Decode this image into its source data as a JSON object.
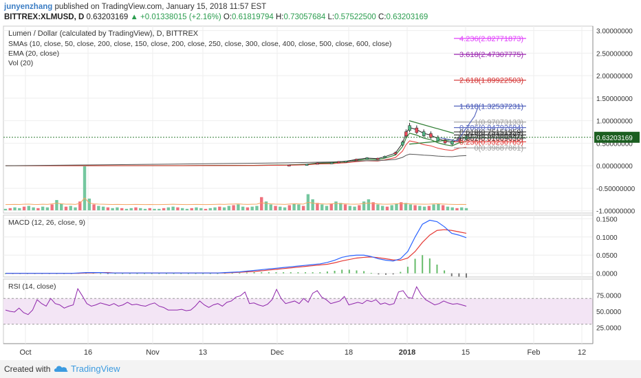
{
  "header": {
    "user": "junyenzhang",
    "published": "published on TradingView.com, January 15, 2018 11:57 EST",
    "symbol": "BITTREX:XLMUSD, D",
    "price": "0.63203169",
    "change": "▲ +0.01338015 (+2.16%)",
    "o_label": "O:",
    "o_value": "0.61819794",
    "h_label": "H:",
    "h_value": "0.73057684",
    "l_label": "L:",
    "l_value": "0.57522500",
    "c_label": "C:",
    "c_value": "0.63203169"
  },
  "footer": {
    "created_with": "Created with",
    "brand": "TradingView"
  },
  "colors": {
    "up": "#53b987",
    "down": "#eb4d5c",
    "macd": "#2962ff",
    "signal": "#e53935",
    "rsi": "#8e24aa",
    "rsi_band": "#f3e5f5"
  },
  "chart_data": [
    {
      "type": "candlestick",
      "title": "Lumen / Dollar (calculated by TradingView), D, BITTREX",
      "legend": [
        "SMAs (10, close, 50, close, 200, close, 150, close, 200, close, 250, close, 300, close, 400, close, 500, close, 600, close)",
        "EMA (20, close)",
        "Vol (20)"
      ],
      "ylim": [
        -1.05,
        3.1
      ],
      "yticks": [
        "3.00000000",
        "2.50000000",
        "2.00000000",
        "1.50000000",
        "1.00000000",
        "0.50000000",
        "0.00000000",
        "-0.50000000",
        "-1.00000000"
      ],
      "ytick_values": [
        3.0,
        2.5,
        2.0,
        1.5,
        1.0,
        0.5,
        0.0,
        -0.5,
        -1.0
      ],
      "last_price_label": "0.63203169",
      "last_price": 0.632,
      "price_path": [
        [
          0,
          0.002
        ],
        [
          20,
          0.002
        ],
        [
          40,
          0.003
        ],
        [
          50,
          0.003
        ],
        [
          60,
          0.008
        ],
        [
          70,
          0.01
        ],
        [
          80,
          0.02
        ],
        [
          85,
          0.035
        ],
        [
          88,
          0.06
        ],
        [
          92,
          0.07
        ],
        [
          94,
          0.09
        ],
        [
          96,
          0.1
        ],
        [
          99,
          0.14
        ],
        [
          102,
          0.17
        ],
        [
          105,
          0.16
        ],
        [
          107,
          0.2
        ],
        [
          110,
          0.28
        ],
        [
          112,
          0.5
        ],
        [
          113,
          0.72
        ],
        [
          114,
          0.85
        ],
        [
          116,
          0.8
        ],
        [
          118,
          0.72
        ],
        [
          120,
          0.68
        ],
        [
          122,
          0.6
        ],
        [
          124,
          0.55
        ],
        [
          126,
          0.52
        ],
        [
          128,
          0.6
        ],
        [
          130,
          0.632
        ]
      ],
      "fib_levels": [
        {
          "label": "4.236(2.82771873)",
          "value": 2.8277,
          "color": "#e040fb"
        },
        {
          "label": "3.618(2.47307775)",
          "value": 2.4731,
          "color": "#9c27b0"
        },
        {
          "label": "2.618(1.89922503)",
          "value": 1.8992,
          "color": "#d32f2f"
        },
        {
          "label": "1.618(1.32537231)",
          "value": 1.3254,
          "color": "#3f51b5"
        },
        {
          "label": "1(0.97073133)",
          "value": 0.9707,
          "color": "#9e9e9e"
        },
        {
          "label": "0.786(0.84792684)",
          "value": 0.8479,
          "color": "#5c6bc0"
        },
        {
          "label": "0.618(0.75151959)",
          "value": 0.7515,
          "color": "#333333"
        },
        {
          "label": "0.5(0.68380497)",
          "value": 0.6838,
          "color": "#333333"
        },
        {
          "label": "0.382(0.61609036)",
          "value": 0.6161,
          "color": "#333333"
        },
        {
          "label": "0.236(0.53230785)",
          "value": 0.5323,
          "color": "#e53935"
        },
        {
          "label": "0(0.39687861)",
          "value": 0.3969,
          "color": "#9e9e9e"
        }
      ],
      "volume": [
        2,
        3,
        4,
        3,
        5,
        6,
        4,
        3,
        5,
        4,
        8,
        14,
        9,
        5,
        6,
        4,
        12,
        60,
        16,
        8,
        6,
        5,
        4,
        3,
        4,
        3,
        2,
        3,
        4,
        3,
        2,
        3,
        2,
        2,
        3,
        4,
        5,
        4,
        3,
        2,
        3,
        4,
        3,
        2,
        3,
        4,
        5,
        4,
        6,
        7,
        8,
        5,
        4,
        5,
        6,
        18,
        12,
        8,
        6,
        5,
        4,
        7,
        9,
        8,
        6,
        22,
        15,
        10,
        8,
        6,
        9,
        12,
        10,
        8,
        6,
        5,
        7,
        12,
        15,
        11,
        8,
        6,
        5,
        7,
        9,
        11,
        10,
        8,
        7,
        6,
        5,
        6,
        8,
        9,
        7,
        5,
        4,
        3,
        4,
        3
      ]
    },
    {
      "type": "line",
      "title": "MACD (12, 26, close, 9)",
      "ylim": [
        -0.01,
        0.16
      ],
      "yticks": [
        "0.1500",
        "0.1000",
        "0.0500",
        "0.0000"
      ],
      "ytick_values": [
        0.15,
        0.1,
        0.05,
        0.0
      ],
      "series": [
        {
          "values": [
            0,
            0,
            0,
            0,
            0,
            0,
            0,
            0,
            0,
            0,
            0.001,
            0.002,
            0.002,
            0.002,
            0.001,
            0.001,
            0.001,
            0.001,
            0.001,
            0.001,
            0.001,
            0.001,
            0.001,
            0.001,
            0.001,
            0.001,
            0.001,
            0.001,
            0.001,
            0.001,
            0.002,
            0.003,
            0.004,
            0.006,
            0.008,
            0.01,
            0.012,
            0.014,
            0.016,
            0.018,
            0.02,
            0.022,
            0.024,
            0.026,
            0.03,
            0.036,
            0.044,
            0.048,
            0.05,
            0.05,
            0.046,
            0.04,
            0.036,
            0.034,
            0.04,
            0.06,
            0.1,
            0.135,
            0.146,
            0.142,
            0.128,
            0.11,
            0.105,
            0.098
          ]
        },
        {
          "values": [
            0,
            0,
            0,
            0,
            0,
            0,
            0,
            0,
            0,
            0,
            0,
            0.001,
            0.001,
            0.002,
            0.002,
            0.001,
            0.001,
            0.001,
            0.001,
            0.001,
            0.001,
            0.001,
            0.001,
            0.001,
            0.001,
            0.001,
            0.001,
            0.001,
            0.001,
            0.001,
            0.001,
            0.002,
            0.003,
            0.004,
            0.005,
            0.007,
            0.009,
            0.011,
            0.013,
            0.015,
            0.017,
            0.019,
            0.021,
            0.023,
            0.025,
            0.029,
            0.034,
            0.038,
            0.042,
            0.044,
            0.045,
            0.043,
            0.04,
            0.037,
            0.036,
            0.042,
            0.06,
            0.085,
            0.105,
            0.118,
            0.12,
            0.118,
            0.114,
            0.11
          ]
        }
      ],
      "histogram": [
        0,
        0,
        0,
        0,
        0,
        0,
        0,
        0,
        0,
        0,
        0.001,
        0.001,
        0.001,
        0,
        -0.001,
        0,
        0,
        0,
        0,
        0,
        0,
        0,
        0,
        0,
        0,
        0,
        0,
        0,
        0,
        0,
        0.001,
        0.001,
        0.001,
        0.002,
        0.003,
        0.003,
        0.003,
        0.003,
        0.003,
        0.003,
        0.003,
        0.003,
        0.003,
        0.003,
        0.005,
        0.007,
        0.01,
        0.01,
        0.008,
        0.006,
        0.001,
        -0.003,
        -0.004,
        -0.003,
        0.004,
        0.018,
        0.04,
        0.05,
        0.041,
        0.024,
        0.008,
        -0.008,
        -0.009,
        -0.012
      ]
    },
    {
      "type": "line",
      "title": "RSI (14, close)",
      "ylim": [
        0,
        100
      ],
      "yticks": [
        "75.0000",
        "50.0000",
        "25.0000"
      ],
      "ytick_values": [
        75,
        50,
        25
      ],
      "band": [
        30,
        70
      ],
      "values": [
        52,
        50,
        49,
        55,
        48,
        45,
        52,
        68,
        62,
        58,
        70,
        62,
        60,
        55,
        58,
        60,
        85,
        74,
        62,
        58,
        60,
        63,
        61,
        59,
        62,
        58,
        60,
        64,
        60,
        61,
        59,
        58,
        61,
        63,
        58,
        56,
        52,
        52,
        52,
        53,
        51,
        52,
        58,
        66,
        60,
        56,
        60,
        62,
        58,
        64,
        66,
        72,
        74,
        80,
        62,
        63,
        60,
        58,
        61,
        68,
        84,
        70,
        62,
        64,
        66,
        62,
        70,
        64,
        78,
        82,
        72,
        68,
        62,
        64,
        66,
        73,
        60,
        62,
        64,
        62,
        67,
        65,
        68,
        61,
        63,
        60,
        62,
        80,
        82,
        72,
        70,
        88,
        76,
        68,
        64,
        60,
        62,
        66,
        63,
        61,
        62,
        60,
        58
      ]
    }
  ],
  "x_axis": {
    "labels": [
      "Oct",
      "16",
      "Nov",
      "13",
      "Dec",
      "18",
      "2018",
      "15",
      "Feb",
      "12"
    ]
  }
}
